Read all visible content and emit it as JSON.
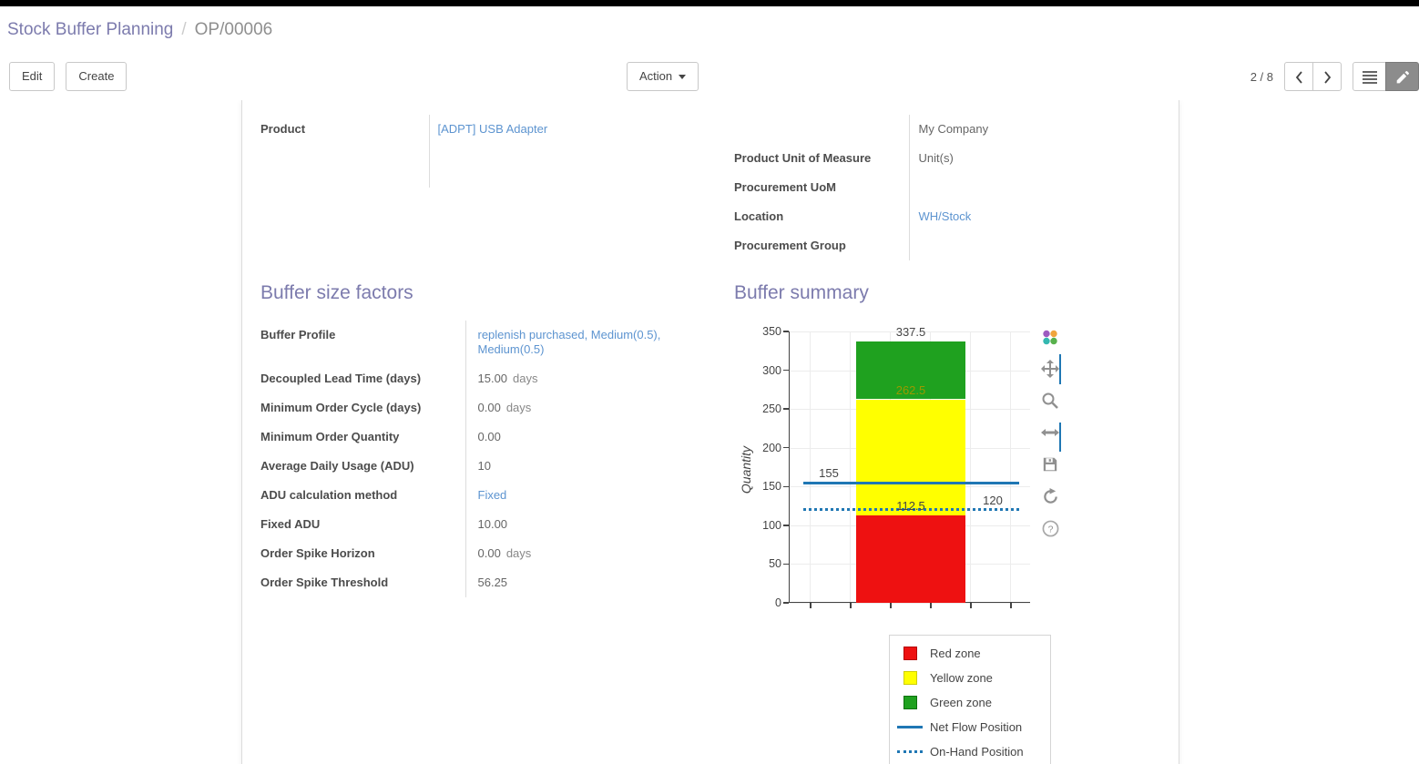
{
  "breadcrumb": {
    "parent": "Stock Buffer Planning",
    "separator": "/",
    "current": "OP/00006"
  },
  "control_panel": {
    "edit": "Edit",
    "create": "Create",
    "action": "Action",
    "pager": "2 / 8"
  },
  "colors": {
    "heading": "#7c7bad",
    "link": "#5d94d0",
    "net_flow_blue": "#1f77b4"
  },
  "form": {
    "left_fields": [
      {
        "label": "Product",
        "value": "[ADPT] USB Adapter"
      }
    ],
    "right_fields": [
      {
        "label": "",
        "value": "My Company"
      },
      {
        "label": "Product Unit of Measure",
        "value": "Unit(s)"
      },
      {
        "label": "Procurement UoM",
        "value": ""
      },
      {
        "label": "Location",
        "value": "WH/Stock"
      },
      {
        "label": "Procurement Group",
        "value": ""
      }
    ]
  },
  "buffer_factors": {
    "title": "Buffer size factors",
    "fields": [
      {
        "label": "Buffer Profile",
        "value": "replenish purchased, Medium(0.5), Medium(0.5)"
      },
      {
        "label": "Decoupled Lead Time (days)",
        "value": "15.00",
        "suffix": "days"
      },
      {
        "label": "Minimum Order Cycle (days)",
        "value": "0.00",
        "suffix": "days"
      },
      {
        "label": "Minimum Order Quantity",
        "value": "0.00",
        "suffix": ""
      },
      {
        "label": "Average Daily Usage (ADU)",
        "value": "10",
        "suffix": ""
      },
      {
        "label": "ADU calculation method",
        "value": "Fixed"
      },
      {
        "label": "Fixed ADU",
        "value": "10.00",
        "suffix": ""
      },
      {
        "label": "Order Spike Horizon",
        "value": "0.00",
        "suffix": "days"
      },
      {
        "label": "Order Spike Threshold",
        "value": "56.25",
        "suffix": ""
      }
    ]
  },
  "buffer_summary": {
    "title": "Buffer summary",
    "chart_data": {
      "type": "bar",
      "title": "",
      "xlabel": "",
      "ylabel": "Quantity",
      "ylim": [
        0,
        350
      ],
      "yticks": [
        0,
        50,
        100,
        150,
        200,
        250,
        300,
        350
      ],
      "grid": true,
      "legend_position": "below-right",
      "zones": [
        {
          "name": "Red zone",
          "from": 0,
          "to": 112.5,
          "color": "#ee1111"
        },
        {
          "name": "Yellow zone",
          "from": 112.5,
          "to": 262.5,
          "color": "#ffff00"
        },
        {
          "name": "Green zone",
          "from": 262.5,
          "to": 337.5,
          "color": "#1fa11f"
        }
      ],
      "lines": [
        {
          "name": "Net Flow Position",
          "value": 155,
          "style": "solid",
          "color": "#1f77b4"
        },
        {
          "name": "On-Hand Position",
          "value": 120,
          "style": "dotted",
          "color": "#1f77b4"
        }
      ],
      "annotations": [
        {
          "text": "337.5",
          "value": 337.5,
          "anchor": "center",
          "color": "#444444"
        },
        {
          "text": "262.5",
          "value": 262.5,
          "anchor": "center",
          "color": "#999900"
        },
        {
          "text": "155",
          "value": 155,
          "anchor": "left",
          "color": "#444444"
        },
        {
          "text": "112.5",
          "value": 112.5,
          "anchor": "center",
          "color": "#444444"
        },
        {
          "text": "120",
          "value": 120,
          "anchor": "right",
          "color": "#444444"
        }
      ],
      "legend": [
        {
          "label": "Red zone",
          "swatch": "square",
          "color": "#ee1111",
          "border": "#b30000"
        },
        {
          "label": "Yellow zone",
          "swatch": "square",
          "color": "#ffff00",
          "border": "#cfcf00"
        },
        {
          "label": "Green zone",
          "swatch": "square",
          "color": "#1fa11f",
          "border": "#0d700d"
        },
        {
          "label": "Net Flow Position",
          "swatch": "line",
          "color": "#1f77b4"
        },
        {
          "label": "On-Hand Position",
          "swatch": "dots",
          "color": "#1f77b4"
        }
      ]
    }
  },
  "modebar_icons": [
    "plotly-logo",
    "pan",
    "zoom",
    "autoscale",
    "save",
    "reset-axes",
    "help"
  ]
}
